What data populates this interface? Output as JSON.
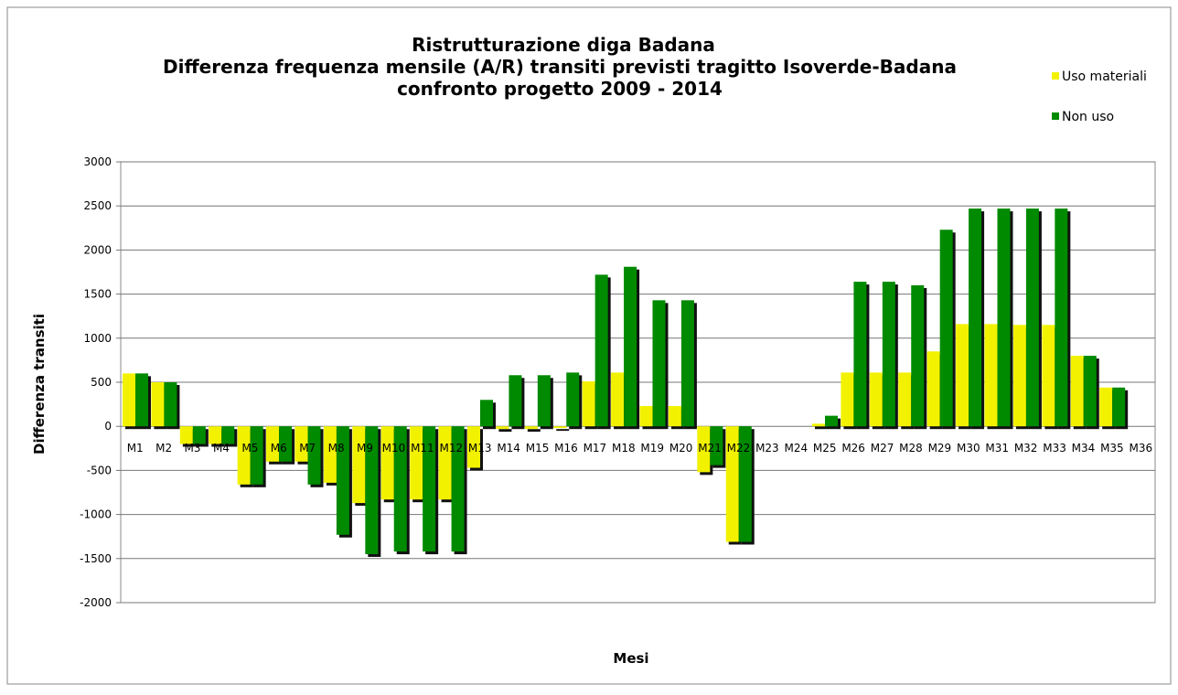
{
  "chart_data": {
    "type": "bar",
    "title": [
      "Ristrutturazione diga Badana",
      "Differenza frequenza mensile (A/R) transiti previsti tragitto Isoverde-Badana",
      "confronto progetto 2009 - 2014"
    ],
    "x_label": "Mesi",
    "y_label": "Differenza transiti",
    "categories": [
      "M1",
      "M2",
      "M3",
      "M4",
      "M5",
      "M6",
      "M7",
      "M8",
      "M9",
      "M10",
      "M11",
      "M12",
      "M13",
      "M14",
      "M15",
      "M16",
      "M17",
      "M18",
      "M19",
      "M20",
      "M21",
      "M22",
      "M23",
      "M24",
      "M25",
      "M26",
      "M27",
      "M28",
      "M29",
      "M30",
      "M31",
      "M32",
      "M33",
      "M34",
      "M35",
      "M36"
    ],
    "series": [
      {
        "name": "Uso materiali",
        "color": "#f2f200",
        "values": [
          600,
          500,
          -200,
          -200,
          -660,
          -400,
          -400,
          -640,
          -870,
          -830,
          -830,
          -830,
          -470,
          -30,
          -30,
          -20,
          510,
          610,
          230,
          230,
          -520,
          -1310,
          0,
          0,
          30,
          610,
          610,
          610,
          850,
          1160,
          1160,
          1150,
          1150,
          800,
          440,
          0
        ]
      },
      {
        "name": "Non uso",
        "color": "#008a00",
        "values": [
          600,
          500,
          -200,
          -200,
          -660,
          -400,
          -660,
          -1230,
          -1450,
          -1420,
          -1420,
          -1420,
          300,
          580,
          580,
          610,
          1720,
          1810,
          1430,
          1430,
          -440,
          -1310,
          0,
          0,
          120,
          1640,
          1640,
          1600,
          2230,
          2470,
          2470,
          2470,
          2470,
          800,
          440,
          0
        ]
      }
    ],
    "ylim": [
      -2000,
      3000
    ],
    "yticks": [
      -2000,
      -1500,
      -1000,
      -500,
      0,
      500,
      1000,
      1500,
      2000,
      2500,
      3000
    ],
    "grid": true,
    "legend": "top-right"
  }
}
